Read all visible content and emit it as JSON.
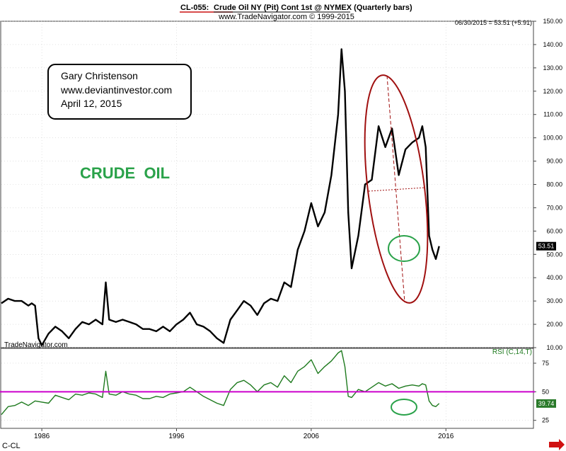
{
  "header": {
    "symbol": "CL-055:",
    "title": "Crude Oil NY (Pit) Cont 1st @ NYMEX  (Quarterly bars)",
    "copyright": "www.TradeNavigator.com © 1999-2015",
    "last_price_note": "06/30/2015 = 53.51 (+5.91)"
  },
  "annotation": {
    "author": "Gary Christenson",
    "website": "www.deviantinvestor.com",
    "date": "April 12, 2015"
  },
  "headline": "CRUDE  OIL",
  "watermark": "TradeNavigator.com",
  "footer_symbol": "C-CL",
  "colors": {
    "price_line": "#000000",
    "rsi_line": "#1e7a1e",
    "rsi_mid_line": "#cc00cc",
    "ellipse_red": "#a01010",
    "ellipse_green": "#2aa24a",
    "headline": "#2aa24a",
    "price_tag": "#000000",
    "rsi_tag": "#2a7a2a",
    "arrow": "#d01010"
  },
  "chart_data": [
    {
      "type": "line",
      "name": "price",
      "ylim": [
        10,
        150
      ],
      "y_ticks": [
        "10.00",
        "20.00",
        "30.00",
        "40.00",
        "50.00",
        "60.00",
        "70.00",
        "80.00",
        "90.00",
        "100.00",
        "110.00",
        "120.00",
        "130.00",
        "140.00",
        "150.00"
      ],
      "last_value_label": "53.51",
      "x": [
        1983.0,
        1983.5,
        1984.0,
        1984.5,
        1985.0,
        1985.25,
        1985.5,
        1985.75,
        1986.0,
        1986.5,
        1987.0,
        1987.5,
        1988.0,
        1988.5,
        1989.0,
        1989.5,
        1990.0,
        1990.5,
        1990.75,
        1991.0,
        1991.5,
        1992.0,
        1992.5,
        1993.0,
        1993.5,
        1994.0,
        1994.5,
        1995.0,
        1995.5,
        1996.0,
        1996.5,
        1997.0,
        1997.5,
        1998.0,
        1998.5,
        1999.0,
        1999.5,
        2000.0,
        2000.5,
        2001.0,
        2001.5,
        2002.0,
        2002.5,
        2003.0,
        2003.5,
        2004.0,
        2004.5,
        2005.0,
        2005.5,
        2006.0,
        2006.5,
        2007.0,
        2007.5,
        2008.0,
        2008.25,
        2008.5,
        2008.75,
        2009.0,
        2009.5,
        2010.0,
        2010.5,
        2011.0,
        2011.5,
        2012.0,
        2012.5,
        2013.0,
        2013.5,
        2014.0,
        2014.25,
        2014.5,
        2014.75,
        2015.0,
        2015.25,
        2015.5
      ],
      "values": [
        29,
        31,
        30,
        30,
        28,
        29,
        28,
        14,
        11,
        16,
        19,
        17,
        14,
        18,
        21,
        20,
        22,
        20,
        38,
        22,
        21,
        22,
        21,
        20,
        18,
        18,
        17,
        19,
        17,
        20,
        22,
        25,
        20,
        19,
        17,
        14,
        12,
        22,
        26,
        30,
        28,
        24,
        29,
        31,
        30,
        38,
        36,
        52,
        60,
        72,
        62,
        68,
        84,
        110,
        138,
        120,
        68,
        44,
        58,
        80,
        82,
        105,
        96,
        104,
        84,
        95,
        98,
        100,
        105,
        96,
        58,
        52,
        48,
        53.51
      ]
    },
    {
      "type": "line",
      "name": "RSI (C,14,T)",
      "ylim": [
        18,
        88
      ],
      "y_ticks": [
        "25",
        "50",
        "75"
      ],
      "reference_line": 50,
      "last_value_label": "39.74",
      "x": [
        1983.0,
        1983.5,
        1984.0,
        1984.5,
        1985.0,
        1985.5,
        1986.0,
        1986.5,
        1987.0,
        1987.5,
        1988.0,
        1988.5,
        1989.0,
        1989.5,
        1990.0,
        1990.5,
        1990.75,
        1991.0,
        1991.5,
        1992.0,
        1992.5,
        1993.0,
        1993.5,
        1994.0,
        1994.5,
        1995.0,
        1995.5,
        1996.0,
        1996.5,
        1997.0,
        1997.5,
        1998.0,
        1998.5,
        1999.0,
        1999.5,
        2000.0,
        2000.5,
        2001.0,
        2001.5,
        2002.0,
        2002.5,
        2003.0,
        2003.5,
        2004.0,
        2004.5,
        2005.0,
        2005.5,
        2006.0,
        2006.5,
        2007.0,
        2007.5,
        2008.0,
        2008.25,
        2008.5,
        2008.75,
        2009.0,
        2009.5,
        2010.0,
        2010.5,
        2011.0,
        2011.5,
        2012.0,
        2012.5,
        2013.0,
        2013.5,
        2014.0,
        2014.25,
        2014.5,
        2014.75,
        2015.0,
        2015.25,
        2015.5
      ],
      "values": [
        30,
        37,
        38,
        41,
        38,
        42,
        41,
        40,
        47,
        45,
        43,
        48,
        47,
        49,
        48,
        45,
        68,
        48,
        47,
        50,
        48,
        47,
        44,
        44,
        46,
        45,
        48,
        49,
        50,
        54,
        50,
        46,
        43,
        40,
        38,
        52,
        58,
        60,
        56,
        50,
        56,
        58,
        54,
        64,
        58,
        68,
        72,
        78,
        66,
        72,
        77,
        84,
        86,
        72,
        46,
        45,
        52,
        50,
        54,
        58,
        55,
        57,
        53,
        55,
        56,
        55,
        57,
        56,
        42,
        38,
        37,
        39.74
      ]
    }
  ],
  "x_axis": {
    "ticks": [
      {
        "year": 1986,
        "label": "1986"
      },
      {
        "year": 1996,
        "label": "1996"
      },
      {
        "year": 2006,
        "label": "2006"
      },
      {
        "year": 2016,
        "label": "2016"
      }
    ],
    "range": [
      1983,
      2022.5
    ]
  }
}
